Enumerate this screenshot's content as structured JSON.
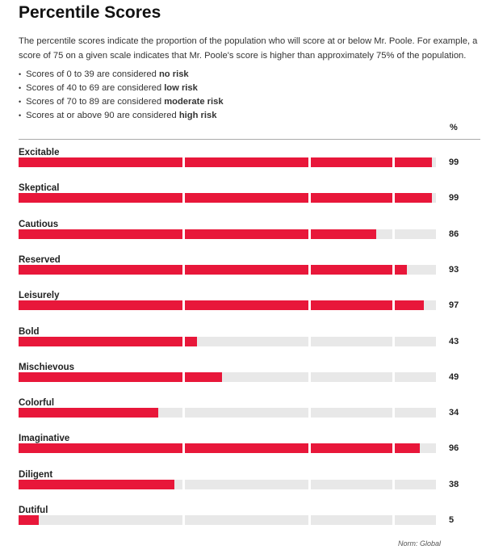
{
  "title": "Percentile Scores",
  "intro": "The percentile scores indicate the proportion of the population who will score at or below Mr. Poole. For example, a score of 75 on a given scale indicates that Mr. Poole's score is higher than approximately 75% of the population.",
  "bullets": [
    {
      "text": "Scores of 0 to 39 are considered ",
      "bold": "no risk"
    },
    {
      "text": "Scores of 40 to 69 are considered ",
      "bold": "low risk"
    },
    {
      "text": "Scores of 70 to 89 are considered ",
      "bold": "moderate risk"
    },
    {
      "text": "Scores at or above 90 are considered ",
      "bold": "high risk"
    }
  ],
  "pct_header": "%",
  "norm": "Norm: Global",
  "chart_data": {
    "type": "bar",
    "orientation": "horizontal",
    "categories": [
      "Excitable",
      "Skeptical",
      "Cautious",
      "Reserved",
      "Leisurely",
      "Bold",
      "Mischievous",
      "Colorful",
      "Imaginative",
      "Diligent",
      "Dutiful"
    ],
    "values": [
      99,
      99,
      86,
      93,
      97,
      43,
      49,
      34,
      96,
      38,
      5
    ],
    "xlim": [
      0,
      100
    ],
    "bands": [
      [
        0,
        39
      ],
      [
        40,
        69
      ],
      [
        70,
        89
      ],
      [
        90,
        100
      ]
    ],
    "colors": {
      "fill": "#e8173a",
      "track": "#e8e8e8"
    }
  }
}
